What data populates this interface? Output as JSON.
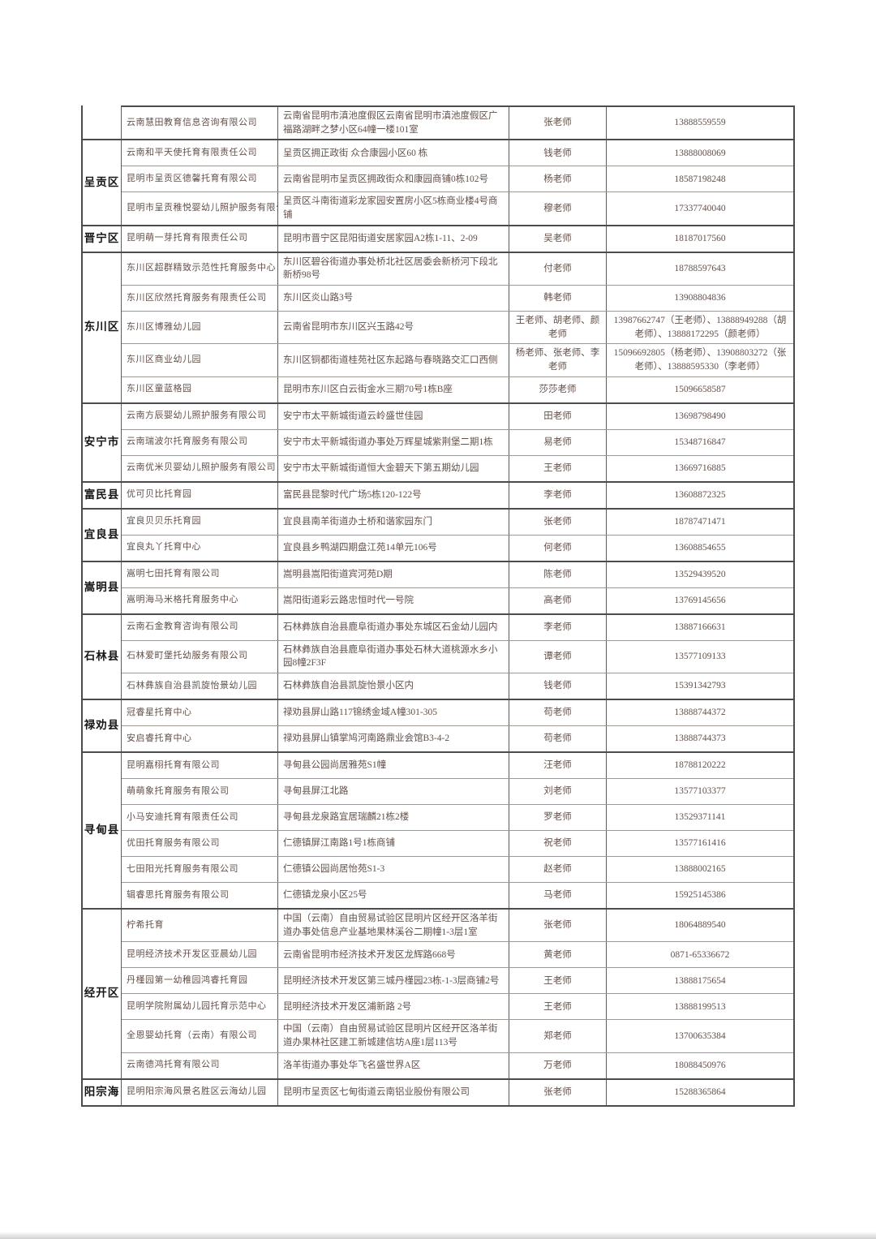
{
  "table": {
    "groups": [
      {
        "region": "",
        "rows": [
          {
            "company": "云南慧田教育信息咨询有限公司",
            "address": "云南省昆明市滇池度假区云南省昆明市滇池度假区广福路湖畔之梦小区64幢一楼101室",
            "teacher": "张老师",
            "phone": "13888559559"
          }
        ]
      },
      {
        "region": "呈贡区",
        "rows": [
          {
            "company": "云南和平天使托育有限责任公司",
            "address": "呈贡区拥正政街 众合康园小区60 栋",
            "teacher": "钱老师",
            "phone": "13888008069"
          },
          {
            "company": "昆明市呈贡区德馨托育有限公司",
            "address": "云南省昆明市呈贡区拥政街众和康园商铺0栋102号",
            "teacher": "杨老师",
            "phone": "18587198248"
          },
          {
            "company": "昆明市呈贡稚悦婴幼儿照护服务有限公",
            "address": "呈贡区斗南街道彩龙家园安置房小区5栋商业楼4号商铺",
            "teacher": "穆老师",
            "phone": "17337740040"
          }
        ]
      },
      {
        "region": "晋宁区",
        "rows": [
          {
            "company": "昆明萌一芽托育有限责任公司",
            "address": "昆明市晋宁区昆阳街道安居家园A2栋1-11、2-09",
            "teacher": "吴老师",
            "phone": "18187017560"
          }
        ]
      },
      {
        "region": "东川区",
        "rows": [
          {
            "company": "东川区超群精致示范性托育服务中心",
            "address": "东川区碧谷街道办事处桥北社区居委会新桥河下段北新桥98号",
            "teacher": "付老师",
            "phone": "18788597643"
          },
          {
            "company": "东川区欣然托育服务有限责任公司",
            "address": "东川区炎山路3号",
            "teacher": "韩老师",
            "phone": "13908804836"
          },
          {
            "company": "东川区博雅幼儿园",
            "address": "云南省昆明市东川区兴玉路42号",
            "teacher": "王老师、胡老师、颜老师",
            "phone": "13987662747（王老师）、13888949288（胡老师）、13888172295（颜老师）"
          },
          {
            "company": "东川区商业幼儿园",
            "address": "东川区铜都街道桂苑社区东起路与春晓路交汇口西侧",
            "teacher": "杨老师、张老师、李老师",
            "phone": "15096692805（杨老师）、13908803272（张老师）、13888595330（李老师）"
          },
          {
            "company": "东川区童蓝格园",
            "address": "昆明市东川区白云街金水三期70号1栋B座",
            "teacher": "莎莎老师",
            "phone": "15096658587"
          }
        ]
      },
      {
        "region": "安宁市",
        "rows": [
          {
            "company": "云南方辰婴幼儿照护服务有限公司",
            "address": "安宁市太平新城街道云岭盛世佳园",
            "teacher": "田老师",
            "phone": "13698798490"
          },
          {
            "company": "云南瑞波尔托育服务有限公司",
            "address": "安宁市太平新城街道办事处万辉星城紫荆堡二期1栋",
            "teacher": "易老师",
            "phone": "15348716847"
          },
          {
            "company": "云南优米贝婴幼儿照护服务有限公司",
            "address": "安宁市太平新城街道恒大金碧天下第五期幼儿园",
            "teacher": "王老师",
            "phone": "13669716885"
          }
        ]
      },
      {
        "region": "富民县",
        "rows": [
          {
            "company": "优可贝比托育园",
            "address": "富民县昆黎时代广场5栋120-122号",
            "teacher": "李老师",
            "phone": "13608872325"
          }
        ]
      },
      {
        "region": "宜良县",
        "rows": [
          {
            "company": "宜良贝贝乐托育园",
            "address": "宜良县南羊街道办土桥和谐家园东门",
            "teacher": "张老师",
            "phone": "18787471471"
          },
          {
            "company": "宜良丸丫托育中心",
            "address": "宜良县乡鸭湖四期盘江苑14单元106号",
            "teacher": "何老师",
            "phone": "13608854655"
          }
        ]
      },
      {
        "region": "嵩明县",
        "rows": [
          {
            "company": "嵩明七田托育有限公司",
            "address": "嵩明县嵩阳街道宾河苑D期",
            "teacher": "陈老师",
            "phone": "13529439520"
          },
          {
            "company": "嵩明海马米格托育服务中心",
            "address": "嵩阳街道彩云路忠恒时代一号院",
            "teacher": "高老师",
            "phone": "13769145656"
          }
        ]
      },
      {
        "region": "石林县",
        "rows": [
          {
            "company": "云南石金教育咨询有限公司",
            "address": "石林彝族自治县鹿阜街道办事处东城区石金幼儿园内",
            "teacher": "李老师",
            "phone": "13887166631"
          },
          {
            "company": "石林爱町堡托幼服务有限公司",
            "address": "石林彝族自治县鹿阜街道办事处石林大道桃源水乡小园8幢2F3F",
            "teacher": "谭老师",
            "phone": "13577109133"
          },
          {
            "company": "石林彝族自治县凯旋怡景幼儿园",
            "address": "石林彝族自治县凯旋怡景小区内",
            "teacher": "钱老师",
            "phone": "15391342793"
          }
        ]
      },
      {
        "region": "禄劝县",
        "rows": [
          {
            "company": "冠睿星托育中心",
            "address": "禄劝县屏山路117锦绣金域A幢301-305",
            "teacher": "苟老师",
            "phone": "13888744372"
          },
          {
            "company": "安启睿托育中心",
            "address": "禄劝县屏山镇掌鸠河南路鼎业会馆B3-4-2",
            "teacher": "苟老师",
            "phone": "13888744373"
          }
        ]
      },
      {
        "region": "寻甸县",
        "rows": [
          {
            "company": "昆明嘉栩托育有限公司",
            "address": "寻甸县公园尚居雅苑S1幢",
            "teacher": "汪老师",
            "phone": "18788120222"
          },
          {
            "company": "萌萌象托育服务有限公司",
            "address": "寻甸县屏江北路",
            "teacher": "刘老师",
            "phone": "13577103377"
          },
          {
            "company": "小马安迪托育有限责任公司",
            "address": "寻甸县龙泉路宜居瑞麟21栋2楼",
            "teacher": "罗老师",
            "phone": "13529371141"
          },
          {
            "company": "优田托育服务有限公司",
            "address": "仁德镇屏江南路1号1栋商铺",
            "teacher": "祝老师",
            "phone": "13577161416"
          },
          {
            "company": "七田阳光托育服务有限公司",
            "address": "仁德镇公园尚居怡苑S1-3",
            "teacher": "赵老师",
            "phone": "13888002165"
          },
          {
            "company": "辑睿思托育服务有限公司",
            "address": "仁德镇龙泉小区25号",
            "teacher": "马老师",
            "phone": "15925145386"
          }
        ]
      },
      {
        "region": "经开区",
        "rows": [
          {
            "company": "柠希托育",
            "address": "中国（云南）自由贸易试验区昆明片区经开区洛羊街道办事处信息产业基地果林溪谷二期幢1-3层1室",
            "teacher": "张老师",
            "phone": "18064889540"
          },
          {
            "company": "昆明经济技术开发区亚晨幼儿园",
            "address": "云南省昆明市经济技术开发区龙辉路668号",
            "teacher": "黄老师",
            "phone": "0871-65336672"
          },
          {
            "company": "丹槿园第一幼稚园鸿睿托育园",
            "address": "昆明经济技术开发区第三城丹槿园23栋-1-3层商铺2号",
            "teacher": "王老师",
            "phone": "13888175654"
          },
          {
            "company": "昆明学院附属幼儿园托育示范中心",
            "address": "昆明经济技术开发区浦新路 2号",
            "teacher": "王老师",
            "phone": "13888199513"
          },
          {
            "company": "全恩婴幼托育（云南）有限公司",
            "address": "中国（云南）自由贸易试验区昆明片区经开区洛羊街道办果林社区建工新城建信坊A座1层113号",
            "teacher": "郑老师",
            "phone": "13700635384"
          },
          {
            "company": "云南德鸿托育有限公司",
            "address": "洛羊街道办事处华飞名盛世界A区",
            "teacher": "万老师",
            "phone": "18088450976"
          }
        ]
      },
      {
        "region": "阳宗海",
        "rows": [
          {
            "company": "昆明阳宗海风景名胜区云海幼儿园",
            "address": "昆明市呈贡区七甸街道云南铝业股份有限公司",
            "teacher": "张老师",
            "phone": "15288365864"
          }
        ]
      }
    ]
  }
}
